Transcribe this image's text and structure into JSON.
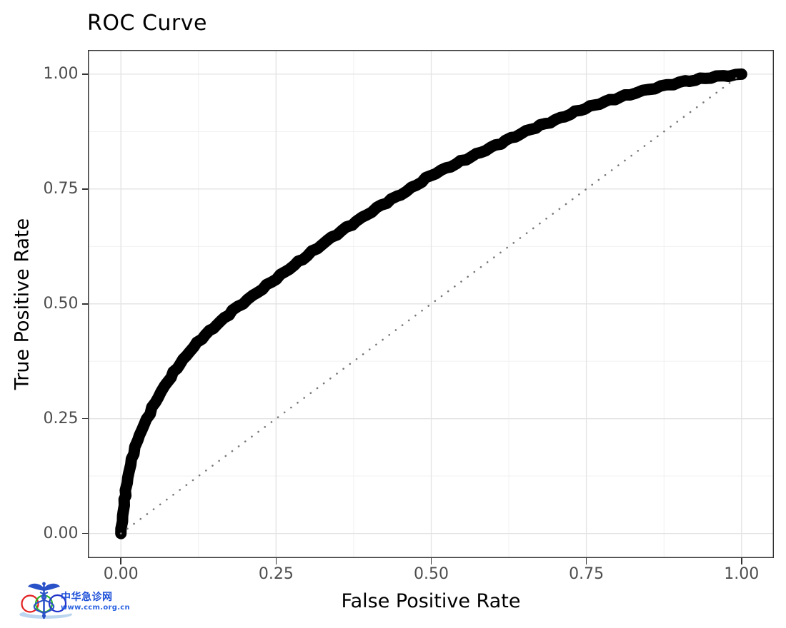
{
  "chart": {
    "title": "ROC Curve",
    "x_axis": {
      "label": "False Positive Rate",
      "tick_labels": [
        "0.00",
        "0.25",
        "0.50",
        "0.75",
        "1.00"
      ],
      "tick_values": [
        0,
        0.25,
        0.5,
        0.75,
        1
      ]
    },
    "y_axis": {
      "label": "True Positive Rate",
      "tick_labels": [
        "0.00",
        "0.25",
        "0.50",
        "0.75",
        "1.00"
      ],
      "tick_values": [
        0,
        0.25,
        0.5,
        0.75,
        1
      ]
    }
  },
  "chart_data": {
    "type": "line",
    "title": "ROC Curve",
    "xlabel": "False Positive Rate",
    "ylabel": "True Positive Rate",
    "xlim": [
      0,
      1
    ],
    "ylim": [
      0,
      1
    ],
    "grid": "major and minor gridlines, white panel, black border (theme_bw)",
    "x_minor": [
      0.125,
      0.375,
      0.625,
      0.875
    ],
    "y_minor": [
      0.125,
      0.375,
      0.625,
      0.875
    ],
    "legend": "none",
    "colors": {
      "grid_major": "#e3e3e3",
      "grid_minor": "#efefef",
      "panel_border": "#333333",
      "tick_text": "#4d4d4d",
      "axis_text": "#000000"
    },
    "series": [
      {
        "name": "ROC curve",
        "style": "solid",
        "color": "#000000",
        "stroke_width_px": 16,
        "points": [
          [
            0,
            0
          ],
          [
            0.004,
            0.05
          ],
          [
            0.008,
            0.095
          ],
          [
            0.013,
            0.135
          ],
          [
            0.02,
            0.175
          ],
          [
            0.03,
            0.215
          ],
          [
            0.042,
            0.25
          ],
          [
            0.055,
            0.285
          ],
          [
            0.07,
            0.32
          ],
          [
            0.09,
            0.36
          ],
          [
            0.11,
            0.395
          ],
          [
            0.13,
            0.425
          ],
          [
            0.155,
            0.455
          ],
          [
            0.18,
            0.485
          ],
          [
            0.205,
            0.51
          ],
          [
            0.235,
            0.54
          ],
          [
            0.265,
            0.57
          ],
          [
            0.3,
            0.605
          ],
          [
            0.34,
            0.645
          ],
          [
            0.38,
            0.68
          ],
          [
            0.42,
            0.715
          ],
          [
            0.46,
            0.745
          ],
          [
            0.5,
            0.78
          ],
          [
            0.54,
            0.805
          ],
          [
            0.58,
            0.83
          ],
          [
            0.62,
            0.855
          ],
          [
            0.66,
            0.88
          ],
          [
            0.7,
            0.9
          ],
          [
            0.74,
            0.922
          ],
          [
            0.78,
            0.94
          ],
          [
            0.82,
            0.956
          ],
          [
            0.86,
            0.97
          ],
          [
            0.9,
            0.982
          ],
          [
            0.95,
            0.993
          ],
          [
            1,
            1
          ]
        ]
      },
      {
        "name": "chance diagonal",
        "style": "dotted",
        "color": "#787878",
        "stroke_width_px": 2.6,
        "points": [
          [
            0,
            0
          ],
          [
            1,
            1
          ]
        ]
      }
    ]
  },
  "watermark": {
    "site_name": "中华急诊网",
    "site_url": "www.ccm.org.cn",
    "colors": {
      "name_text": "#1b4ed8",
      "url_text": "#2a62e0",
      "red_ring": "#e32222",
      "green_ring": "#2ab82a",
      "blue_ring": "#2233cc",
      "caduceus": "#2a52c8",
      "swoosh": "#b4d2ec"
    }
  }
}
